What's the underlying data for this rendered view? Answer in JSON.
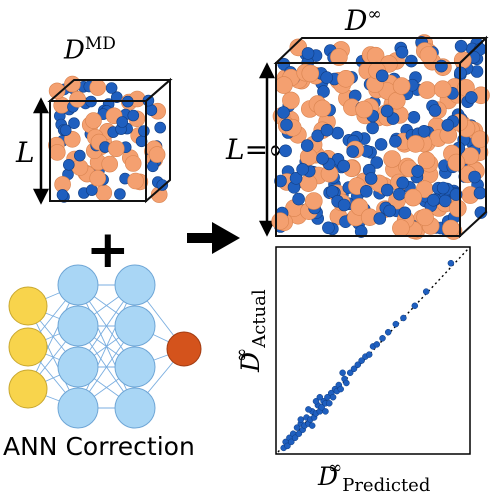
{
  "labels": {
    "md_box_base": "D",
    "md_box_sup": "MD",
    "inf_box_base": "D",
    "inf_box_sup": "∞",
    "length_label": "L",
    "length_inf_label": "L=∞",
    "plus_sign": "+",
    "ann_caption": "ANN Correction"
  },
  "colors": {
    "blue_atom": "#1f5fbf",
    "orange_atom": "#f4a070",
    "node_fill": "#a9d6f5",
    "input_node": "#f8d44c",
    "output_node": "#d4531c",
    "plot_marker": "#1f5fbf"
  },
  "icons": {
    "arrow": "right-arrow-icon"
  },
  "chart_data": {
    "type": "scatter",
    "xlabel_base": "D",
    "xlabel_sup": "∞",
    "xlabel_sub": "Predicted",
    "ylabel_base": "D",
    "ylabel_sup": "∞",
    "ylabel_sub": "Actual",
    "xlim": [
      0,
      1
    ],
    "ylim": [
      0,
      1
    ],
    "diagonal": "dotted y=x",
    "points": [
      [
        0.03,
        0.02
      ],
      [
        0.04,
        0.05
      ],
      [
        0.05,
        0.03
      ],
      [
        0.06,
        0.07
      ],
      [
        0.07,
        0.05
      ],
      [
        0.08,
        0.09
      ],
      [
        0.09,
        0.07
      ],
      [
        0.1,
        0.12
      ],
      [
        0.11,
        0.09
      ],
      [
        0.12,
        0.14
      ],
      [
        0.13,
        0.11
      ],
      [
        0.14,
        0.13
      ],
      [
        0.15,
        0.17
      ],
      [
        0.16,
        0.14
      ],
      [
        0.17,
        0.16
      ],
      [
        0.18,
        0.2
      ],
      [
        0.19,
        0.17
      ],
      [
        0.2,
        0.19
      ],
      [
        0.21,
        0.23
      ],
      [
        0.22,
        0.2
      ],
      [
        0.23,
        0.22
      ],
      [
        0.24,
        0.25
      ],
      [
        0.25,
        0.24
      ],
      [
        0.26,
        0.27
      ],
      [
        0.27,
        0.24
      ],
      [
        0.28,
        0.29
      ],
      [
        0.29,
        0.27
      ],
      [
        0.3,
        0.31
      ],
      [
        0.31,
        0.3
      ],
      [
        0.32,
        0.33
      ],
      [
        0.33,
        0.31
      ],
      [
        0.35,
        0.36
      ],
      [
        0.36,
        0.34
      ],
      [
        0.38,
        0.39
      ],
      [
        0.4,
        0.41
      ],
      [
        0.42,
        0.43
      ],
      [
        0.44,
        0.45
      ],
      [
        0.46,
        0.47
      ],
      [
        0.48,
        0.48
      ],
      [
        0.5,
        0.52
      ],
      [
        0.52,
        0.53
      ],
      [
        0.55,
        0.56
      ],
      [
        0.58,
        0.59
      ],
      [
        0.62,
        0.63
      ],
      [
        0.66,
        0.66
      ],
      [
        0.72,
        0.72
      ],
      [
        0.78,
        0.79
      ],
      [
        0.91,
        0.93
      ],
      [
        0.12,
        0.16
      ],
      [
        0.16,
        0.21
      ],
      [
        0.2,
        0.25
      ],
      [
        0.22,
        0.27
      ],
      [
        0.18,
        0.13
      ],
      [
        0.25,
        0.2
      ],
      [
        0.34,
        0.39
      ]
    ]
  }
}
